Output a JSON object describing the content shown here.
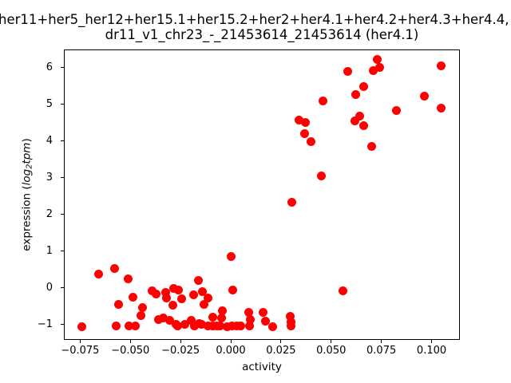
{
  "title": {
    "line1": "her11+her5_her12+her15.1+her15.2+her2+her4.1+her4.2+her4.3+her4.4,",
    "line2": "dr11_v1_chr23_-_21453614_21453614 (her4.1)"
  },
  "chart_data": {
    "type": "scatter",
    "title": "her11+her5_her12+her15.1+her15.2+her2+her4.1+her4.2+her4.3+her4.4,\ndr11_v1_chr23_-_21453614_21453614 (her4.1)",
    "xlabel": "activity",
    "ylabel": "expression (log2 tpm)",
    "ylabel_parts": {
      "prefix": "expression (",
      "log": "log",
      "sub": "2",
      "tpm": "tpm",
      "suffix": ")"
    },
    "marker_color": "#ff0000",
    "marker_diameter_px": 11,
    "grid": false,
    "legend": null,
    "xlim": [
      -0.0831,
      0.1141
    ],
    "ylim": [
      -1.424,
      6.5
    ],
    "x_ticks": [
      {
        "value": -0.075,
        "label": "−0.075"
      },
      {
        "value": -0.05,
        "label": "−0.050"
      },
      {
        "value": -0.025,
        "label": "−0.025"
      },
      {
        "value": 0.0,
        "label": "0.000"
      },
      {
        "value": 0.025,
        "label": "0.025"
      },
      {
        "value": 0.05,
        "label": "0.050"
      },
      {
        "value": 0.075,
        "label": "0.075"
      },
      {
        "value": 0.1,
        "label": "0.100"
      }
    ],
    "y_ticks": [
      {
        "value": -1,
        "label": "−1"
      },
      {
        "value": 0,
        "label": "0"
      },
      {
        "value": 1,
        "label": "1"
      },
      {
        "value": 2,
        "label": "2"
      },
      {
        "value": 3,
        "label": "3"
      },
      {
        "value": 4,
        "label": "4"
      },
      {
        "value": 5,
        "label": "5"
      },
      {
        "value": 6,
        "label": "6"
      }
    ],
    "points": [
      [
        -0.074,
        -1.06
      ],
      [
        -0.0659,
        0.38
      ],
      [
        -0.058,
        0.53
      ],
      [
        -0.051,
        0.25
      ],
      [
        -0.0559,
        -0.45
      ],
      [
        -0.0489,
        -0.27
      ],
      [
        -0.0571,
        -1.05
      ],
      [
        -0.0505,
        -1.05
      ],
      [
        -0.0476,
        -1.05
      ],
      [
        -0.044,
        -0.54
      ],
      [
        -0.0449,
        -0.75
      ],
      [
        -0.0393,
        -0.08
      ],
      [
        -0.037,
        -0.17
      ],
      [
        -0.0323,
        -0.12
      ],
      [
        -0.0321,
        -0.29
      ],
      [
        -0.0283,
        -0.02
      ],
      [
        -0.0262,
        -0.06
      ],
      [
        -0.029,
        -0.48
      ],
      [
        -0.0244,
        -0.3
      ],
      [
        -0.0183,
        -0.19
      ],
      [
        -0.0162,
        0.2
      ],
      [
        -0.014,
        -0.1
      ],
      [
        -0.0115,
        -0.29
      ],
      [
        -0.0135,
        -0.45
      ],
      [
        -0.036,
        -0.86
      ],
      [
        -0.0338,
        -0.83
      ],
      [
        -0.0303,
        -0.9
      ],
      [
        -0.0197,
        -0.88
      ],
      [
        -0.0158,
        -0.97
      ],
      [
        -0.009,
        -0.81
      ],
      [
        -0.0045,
        -0.83
      ],
      [
        -0.004,
        -0.62
      ],
      [
        0.0011,
        -0.07
      ],
      [
        0.0001,
        0.86
      ],
      [
        0.0088,
        -0.67
      ],
      [
        0.0097,
        -0.86
      ],
      [
        0.0092,
        -1.05
      ],
      [
        0.0162,
        -0.68
      ],
      [
        0.0174,
        -0.91
      ],
      [
        0.0209,
        -1.06
      ],
      [
        0.0295,
        -0.78
      ],
      [
        0.0299,
        -0.93
      ],
      [
        0.0301,
        -1.05
      ],
      [
        0.056,
        -0.09
      ],
      [
        -0.0274,
        -1.0
      ],
      [
        -0.0264,
        -1.05
      ],
      [
        -0.0228,
        -1.01
      ],
      [
        -0.0179,
        -1.05
      ],
      [
        -0.0146,
        -1.01
      ],
      [
        -0.0115,
        -1.05
      ],
      [
        -0.0091,
        -1.05
      ],
      [
        -0.0069,
        -1.05
      ],
      [
        -0.0052,
        -1.05
      ],
      [
        -0.0016,
        -1.06
      ],
      [
        0.0004,
        -1.05
      ],
      [
        0.0031,
        -1.05
      ],
      [
        0.005,
        -1.05
      ],
      [
        0.0305,
        2.33
      ],
      [
        0.0452,
        3.06
      ],
      [
        0.0339,
        4.57
      ],
      [
        0.0372,
        4.51
      ],
      [
        0.0368,
        4.21
      ],
      [
        0.0401,
        3.99
      ],
      [
        0.046,
        5.09
      ],
      [
        0.0583,
        5.9
      ],
      [
        0.0624,
        5.28
      ],
      [
        0.066,
        5.48
      ],
      [
        0.062,
        4.55
      ],
      [
        0.0644,
        4.68
      ],
      [
        0.0662,
        4.43
      ],
      [
        0.07,
        3.86
      ],
      [
        0.073,
        6.22
      ],
      [
        0.0709,
        5.93
      ],
      [
        0.0743,
        6.02
      ],
      [
        0.0825,
        4.84
      ],
      [
        0.0965,
        5.22
      ],
      [
        0.1047,
        6.06
      ],
      [
        0.1048,
        4.89
      ]
    ]
  }
}
